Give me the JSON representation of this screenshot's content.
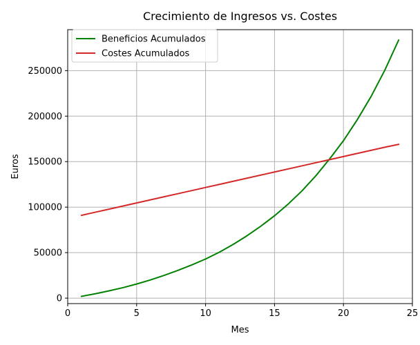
{
  "chart_data": {
    "type": "line",
    "title": "Crecimiento de Ingresos vs. Costes",
    "xlabel": "Mes",
    "ylabel": "Euros",
    "xlim": [
      0,
      25
    ],
    "ylim": [
      -6000,
      295000
    ],
    "xticks": [
      0,
      5,
      10,
      15,
      20,
      25
    ],
    "yticks": [
      0,
      50000,
      100000,
      150000,
      200000,
      250000
    ],
    "grid": true,
    "legend_position": "top-left",
    "x": [
      1,
      2,
      3,
      4,
      5,
      6,
      7,
      8,
      9,
      10,
      11,
      12,
      13,
      14,
      15,
      16,
      17,
      18,
      19,
      20,
      21,
      22,
      23,
      24
    ],
    "series": [
      {
        "name": "Beneficios Acumulados",
        "color": "#008000",
        "values": [
          2000,
          4800,
          8000,
          11500,
          15500,
          20000,
          25000,
          30500,
          36500,
          43000,
          50500,
          59000,
          68500,
          79000,
          90500,
          103500,
          118000,
          134500,
          153000,
          173000,
          196000,
          221500,
          250500,
          283500
        ]
      },
      {
        "name": "Costes Acumulados",
        "color": "#d62728",
        "values": [
          91000,
          94400,
          97800,
          101200,
          104600,
          108000,
          111400,
          114800,
          118200,
          121600,
          125000,
          128400,
          131800,
          135200,
          138600,
          142000,
          145400,
          148800,
          152200,
          155600,
          159000,
          162400,
          165800,
          169000
        ]
      }
    ]
  }
}
